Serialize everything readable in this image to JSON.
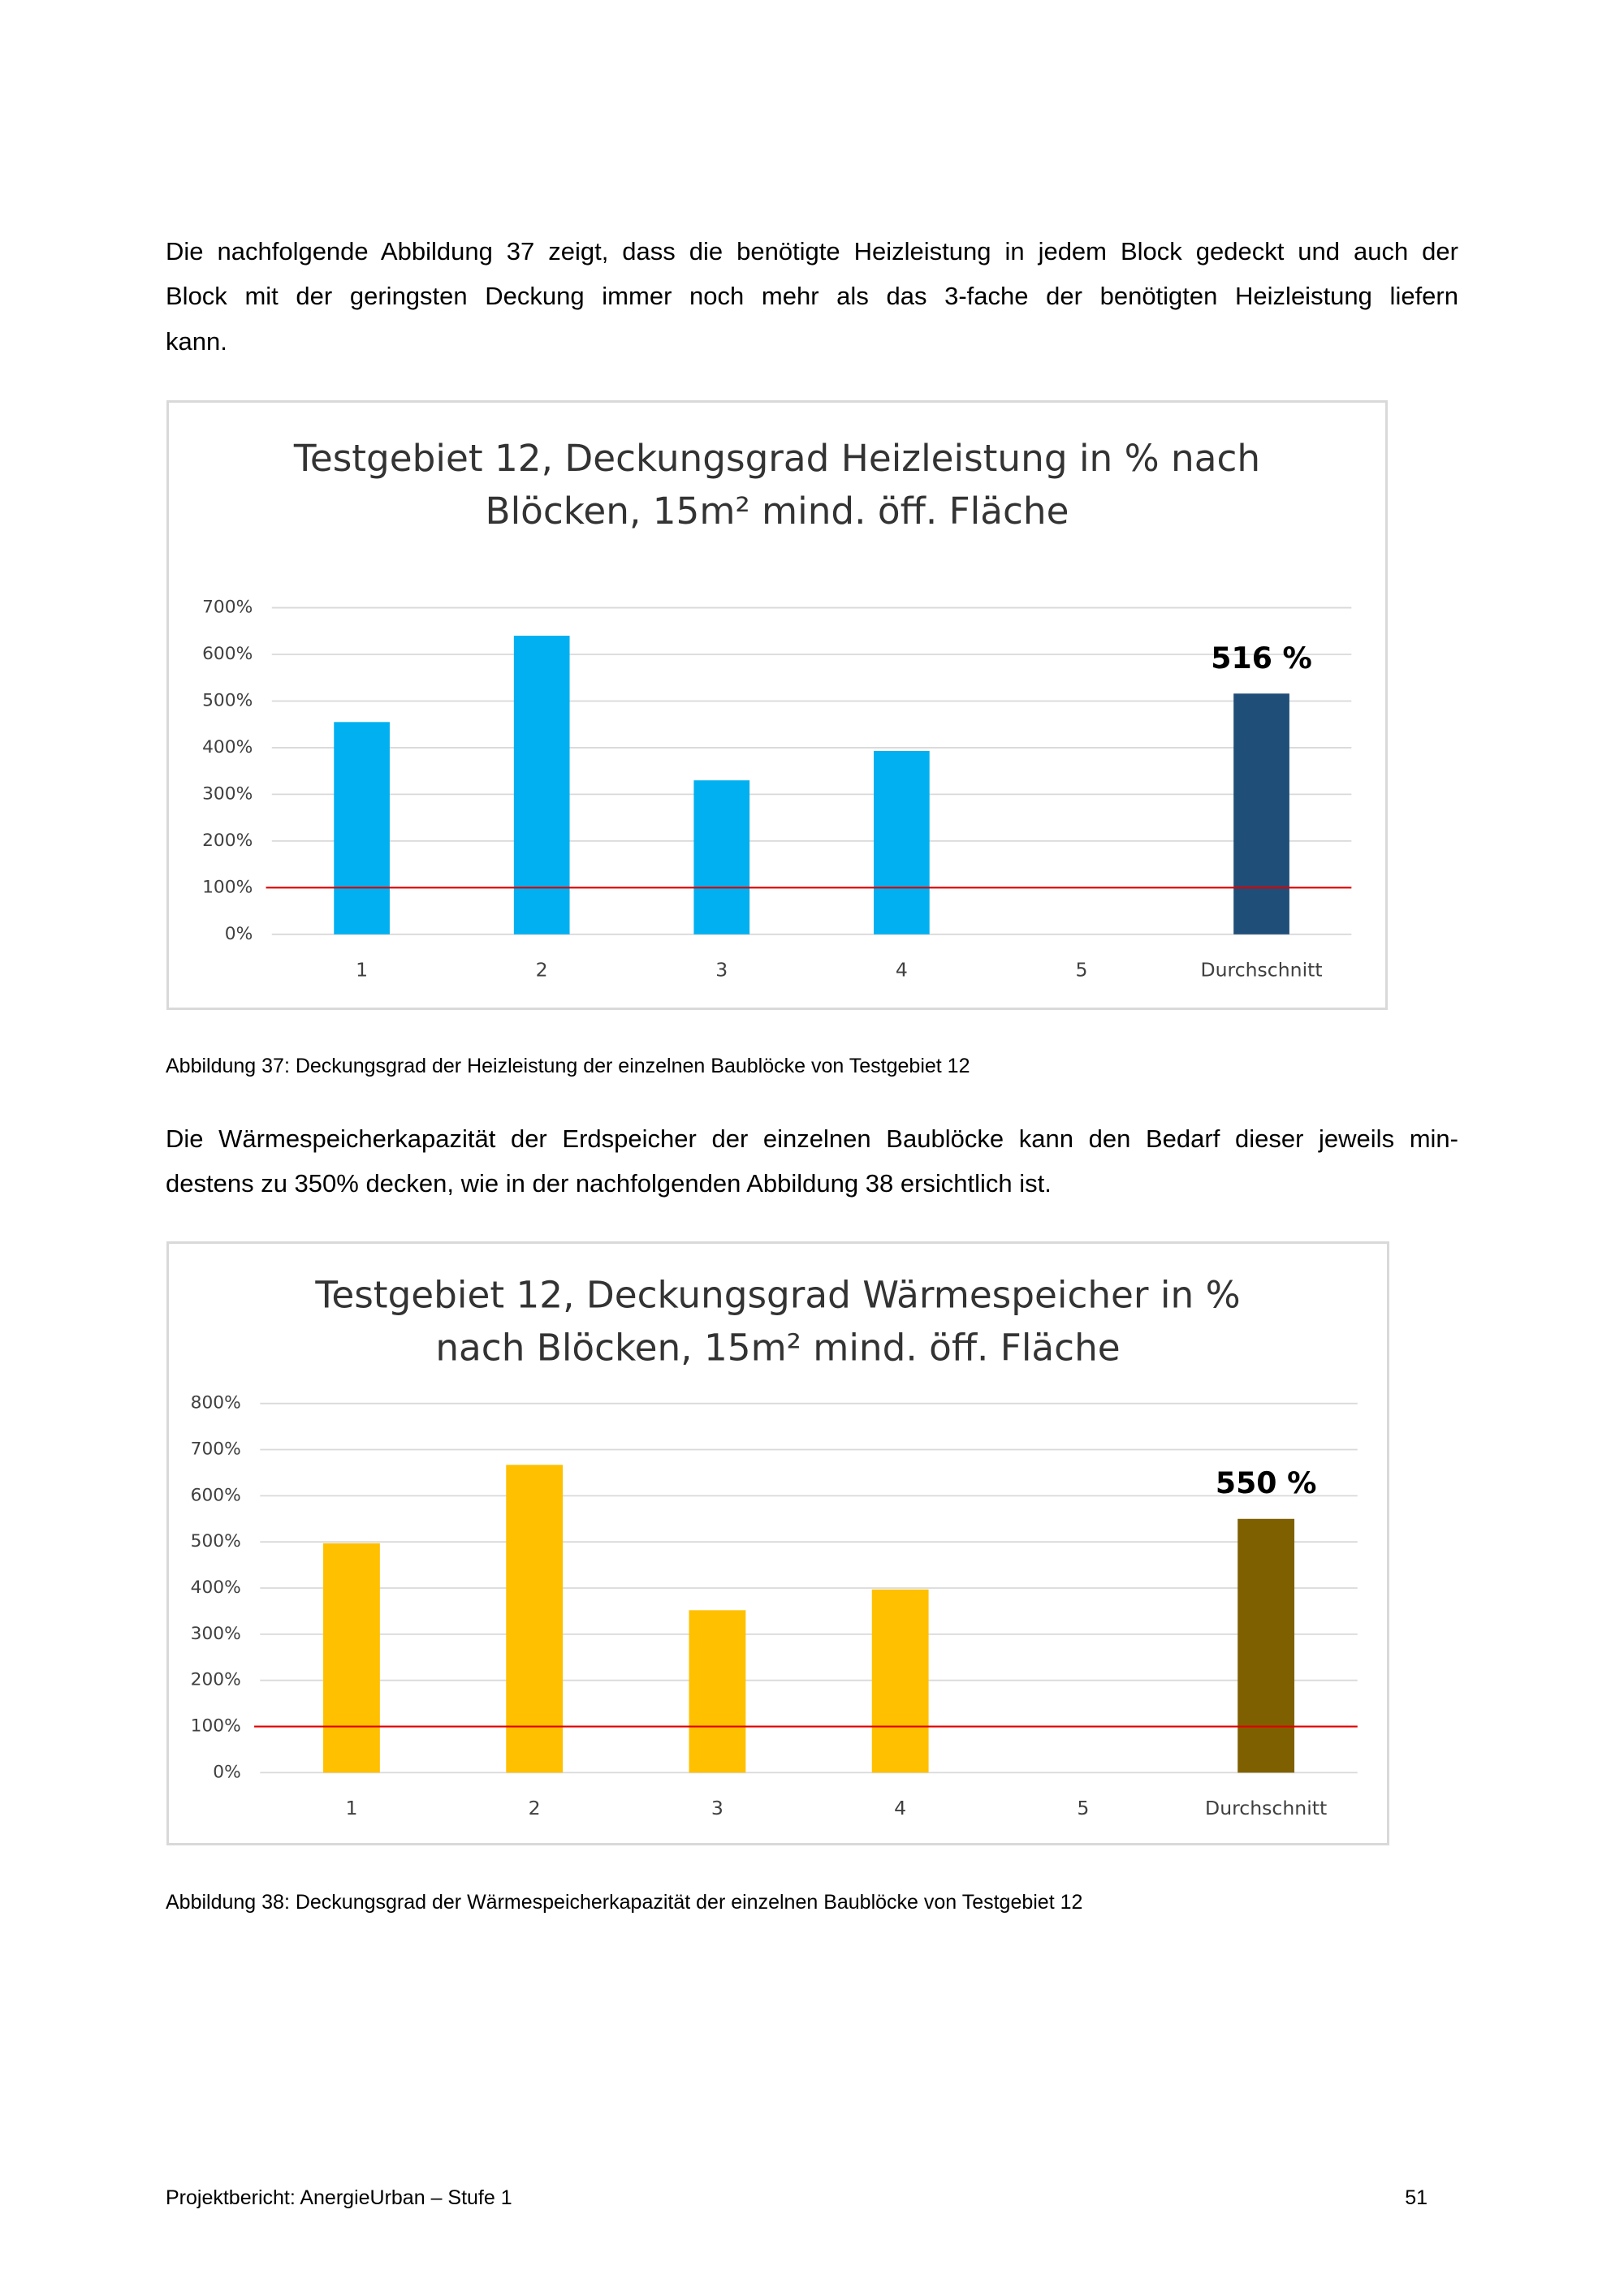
{
  "paragraphs": [
    [
      "Die nachfolgende Abbildung 37 zeigt, dass die benötigte Heizleistung in jedem Block gedeckt und auch der",
      "Block mit der geringsten Deckung immer noch mehr als das 3-fache der benötigten Heizleistung liefern",
      "kann."
    ],
    [
      "Die Wärmespeicherkapazität der Erdspeicher der einzelnen Baublöcke kann den Bedarf dieser jeweils min-",
      "destens zu 350% decken, wie in der nachfolgenden Abbildung 38 ersichtlich ist."
    ]
  ],
  "captions": [
    "Abbildung 37: Deckungsgrad der Heizleistung der einzelnen Baublöcke von Testgebiet 12",
    "Abbildung 38: Deckungsgrad der Wärmespeicherkapazität der einzelnen Baublöcke von Testgebiet 12"
  ],
  "footer": {
    "left": "Projektbericht: AnergieUrban – Stufe 1",
    "page": "51"
  },
  "chart_data": [
    {
      "type": "bar",
      "title": [
        "Testgebiet 12, Deckungsgrad Heizleistung in % nach",
        "Blöcken, 15m² mind. öff. Fläche"
      ],
      "categories": [
        "1",
        "2",
        "3",
        "4",
        "5",
        "Durchschnitt"
      ],
      "values": [
        455,
        640,
        330,
        393,
        null,
        516
      ],
      "value_labels": [
        null,
        null,
        null,
        null,
        null,
        "516 %"
      ],
      "colors": [
        "#00b0f0",
        "#00b0f0",
        "#00b0f0",
        "#00b0f0",
        "#00b0f0",
        "#1f4e79"
      ],
      "ylim": [
        0,
        700
      ],
      "yticks": [
        {
          "value": 0,
          "label": "0%"
        },
        {
          "value": 100,
          "label": "100%"
        },
        {
          "value": 200,
          "label": "200%"
        },
        {
          "value": 300,
          "label": "300%"
        },
        {
          "value": 400,
          "label": "400%"
        },
        {
          "value": 500,
          "label": "500%"
        },
        {
          "value": 600,
          "label": "600%"
        },
        {
          "value": 700,
          "label": "700%"
        }
      ],
      "grid": true,
      "reference_line": {
        "value": 100,
        "color": "#e00000"
      }
    },
    {
      "type": "bar",
      "title": [
        "Testgebiet 12, Deckungsgrad Wärmespeicher  in %",
        "nach Blöcken, 15m² mind. öff. Fläche"
      ],
      "categories": [
        "1",
        "2",
        "3",
        "4",
        "5",
        "Durchschnitt"
      ],
      "values": [
        497,
        667,
        352,
        397,
        null,
        550
      ],
      "value_labels": [
        null,
        null,
        null,
        null,
        null,
        "550 %"
      ],
      "colors": [
        "#ffc000",
        "#ffc000",
        "#ffc000",
        "#ffc000",
        "#ffc000",
        "#7f6000"
      ],
      "ylim": [
        0,
        800
      ],
      "yticks": [
        {
          "value": 0,
          "label": "0%"
        },
        {
          "value": 100,
          "label": "100%"
        },
        {
          "value": 200,
          "label": "200%"
        },
        {
          "value": 300,
          "label": "300%"
        },
        {
          "value": 400,
          "label": "400%"
        },
        {
          "value": 500,
          "label": "500%"
        },
        {
          "value": 600,
          "label": "600%"
        },
        {
          "value": 700,
          "label": "700%"
        },
        {
          "value": 800,
          "label": "800%"
        }
      ],
      "grid": true,
      "reference_line": {
        "value": 100,
        "color": "#e00000"
      }
    }
  ]
}
